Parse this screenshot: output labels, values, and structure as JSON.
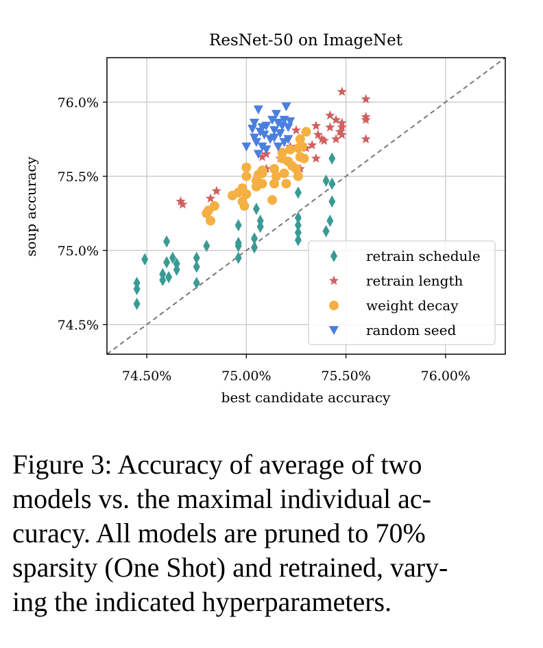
{
  "chart_data": {
    "type": "scatter",
    "title": "ResNet-50 on ImageNet",
    "xlabel": "best candidate accuracy",
    "ylabel": "soup accuracy",
    "xlim": [
      74.3,
      76.3
    ],
    "ylim": [
      74.3,
      76.3
    ],
    "xticks": [
      {
        "value": 74.5,
        "label": "74.50%"
      },
      {
        "value": 75.0,
        "label": "75.00%"
      },
      {
        "value": 75.5,
        "label": "75.50%"
      },
      {
        "value": 76.0,
        "label": "76.00%"
      }
    ],
    "yticks": [
      {
        "value": 74.5,
        "label": "74.5%"
      },
      {
        "value": 75.0,
        "label": "75.0%"
      },
      {
        "value": 75.5,
        "label": "75.5%"
      },
      {
        "value": 76.0,
        "label": "76.0%"
      }
    ],
    "grid": true,
    "diagonal": "y = x (dashed gray)",
    "legend_position": "bottom-right",
    "series": [
      {
        "name": "retrain schedule",
        "marker": "diamond",
        "color": "#3a9a94",
        "points": [
          [
            74.45,
            74.78
          ],
          [
            74.45,
            74.74
          ],
          [
            74.45,
            74.64
          ],
          [
            74.49,
            74.94
          ],
          [
            74.58,
            74.84
          ],
          [
            74.58,
            74.8
          ],
          [
            74.6,
            75.06
          ],
          [
            74.6,
            74.92
          ],
          [
            74.61,
            74.82
          ],
          [
            74.63,
            74.95
          ],
          [
            74.65,
            74.91
          ],
          [
            74.65,
            74.87
          ],
          [
            74.75,
            74.95
          ],
          [
            74.75,
            74.89
          ],
          [
            74.75,
            74.78
          ],
          [
            74.8,
            75.03
          ],
          [
            74.96,
            75.17
          ],
          [
            74.96,
            75.05
          ],
          [
            74.96,
            75.03
          ],
          [
            74.96,
            74.95
          ],
          [
            75.04,
            75.08
          ],
          [
            75.04,
            75.02
          ],
          [
            75.05,
            75.28
          ],
          [
            75.07,
            75.2
          ],
          [
            75.07,
            75.16
          ],
          [
            75.26,
            75.39
          ],
          [
            75.26,
            75.22
          ],
          [
            75.26,
            75.17
          ],
          [
            75.26,
            75.12
          ],
          [
            75.26,
            75.07
          ],
          [
            75.4,
            75.47
          ],
          [
            75.4,
            75.13
          ],
          [
            75.42,
            75.2
          ],
          [
            75.43,
            75.62
          ],
          [
            75.43,
            75.45
          ],
          [
            75.43,
            75.33
          ]
        ]
      },
      {
        "name": "retrain length",
        "marker": "star",
        "color": "#d0605e",
        "points": [
          [
            74.67,
            75.33
          ],
          [
            74.68,
            75.31
          ],
          [
            74.82,
            75.35
          ],
          [
            74.85,
            75.4
          ],
          [
            75.08,
            75.63
          ],
          [
            75.1,
            75.55
          ],
          [
            75.1,
            75.65
          ],
          [
            75.17,
            75.62
          ],
          [
            75.22,
            75.7
          ],
          [
            75.25,
            75.81
          ],
          [
            75.27,
            75.55
          ],
          [
            75.3,
            75.69
          ],
          [
            75.33,
            75.71
          ],
          [
            75.35,
            75.62
          ],
          [
            75.35,
            75.84
          ],
          [
            75.36,
            75.78
          ],
          [
            75.38,
            75.75
          ],
          [
            75.39,
            75.74
          ],
          [
            75.42,
            75.91
          ],
          [
            75.42,
            75.83
          ],
          [
            75.45,
            75.88
          ],
          [
            75.45,
            75.75
          ],
          [
            75.47,
            75.8
          ],
          [
            75.48,
            75.86
          ],
          [
            75.48,
            75.83
          ],
          [
            75.48,
            75.78
          ],
          [
            75.48,
            76.07
          ],
          [
            75.6,
            76.02
          ],
          [
            75.6,
            75.9
          ],
          [
            75.6,
            75.88
          ],
          [
            75.6,
            75.75
          ]
        ]
      },
      {
        "name": "weight decay",
        "marker": "circle",
        "color": "#f4b042",
        "points": [
          [
            74.8,
            75.25
          ],
          [
            74.81,
            75.27
          ],
          [
            74.82,
            75.2
          ],
          [
            74.84,
            75.3
          ],
          [
            74.93,
            75.37
          ],
          [
            74.96,
            75.39
          ],
          [
            74.98,
            75.33
          ],
          [
            74.98,
            75.42
          ],
          [
            74.99,
            75.3
          ],
          [
            75.0,
            75.38
          ],
          [
            75.0,
            75.5
          ],
          [
            75.0,
            75.56
          ],
          [
            75.05,
            75.47
          ],
          [
            75.05,
            75.43
          ],
          [
            75.06,
            75.51
          ],
          [
            75.08,
            75.45
          ],
          [
            75.08,
            75.52
          ],
          [
            75.08,
            75.54
          ],
          [
            75.13,
            75.34
          ],
          [
            75.14,
            75.45
          ],
          [
            75.14,
            75.55
          ],
          [
            75.15,
            75.5
          ],
          [
            75.18,
            75.62
          ],
          [
            75.18,
            75.66
          ],
          [
            75.19,
            75.52
          ],
          [
            75.2,
            75.45
          ],
          [
            75.21,
            75.6
          ],
          [
            75.22,
            75.68
          ],
          [
            75.23,
            75.57
          ],
          [
            75.25,
            75.55
          ],
          [
            75.26,
            75.5
          ],
          [
            75.26,
            75.69
          ],
          [
            75.27,
            75.63
          ],
          [
            75.27,
            75.75
          ],
          [
            75.28,
            75.7
          ],
          [
            75.29,
            75.62
          ],
          [
            75.3,
            75.8
          ]
        ]
      },
      {
        "name": "random seed",
        "marker": "triangle-down",
        "color": "#4a7fe0",
        "points": [
          [
            75.0,
            75.7
          ],
          [
            75.03,
            75.82
          ],
          [
            75.04,
            75.76
          ],
          [
            75.04,
            75.86
          ],
          [
            75.05,
            75.73
          ],
          [
            75.06,
            75.65
          ],
          [
            75.06,
            75.95
          ],
          [
            75.07,
            75.8
          ],
          [
            75.08,
            75.83
          ],
          [
            75.08,
            75.7
          ],
          [
            75.09,
            75.78
          ],
          [
            75.1,
            75.84
          ],
          [
            75.1,
            75.68
          ],
          [
            75.12,
            75.75
          ],
          [
            75.13,
            75.88
          ],
          [
            75.14,
            75.81
          ],
          [
            75.14,
            75.76
          ],
          [
            75.15,
            75.92
          ],
          [
            75.16,
            75.86
          ],
          [
            75.16,
            75.7
          ],
          [
            75.17,
            75.79
          ],
          [
            75.18,
            75.84
          ],
          [
            75.19,
            75.88
          ],
          [
            75.19,
            75.73
          ],
          [
            75.2,
            75.97
          ],
          [
            75.21,
            75.83
          ],
          [
            75.21,
            75.75
          ],
          [
            75.22,
            75.87
          ]
        ]
      }
    ]
  },
  "caption": {
    "lines": [
      "Figure 3:  Accuracy of average of two",
      "models vs.  the maximal individual ac-",
      "curacy.  All models are pruned to 70%",
      "sparsity (One Shot) and retrained, vary-",
      "ing the indicated hyperparameters."
    ]
  }
}
